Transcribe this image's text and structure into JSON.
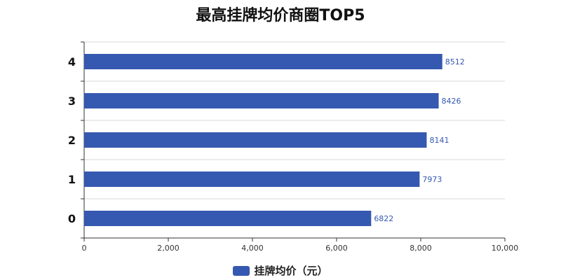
{
  "colors": {
    "bar": "#3558b0",
    "grid": "#d9d9d9",
    "axis": "#333333",
    "label": "#3558b0"
  },
  "chart_data": {
    "type": "bar",
    "orientation": "horizontal",
    "title": "最高挂牌均价商圈TOP5",
    "categories": [
      "0",
      "1",
      "2",
      "3",
      "4"
    ],
    "series": [
      {
        "name": "挂牌均价（元）",
        "values": [
          6822,
          7973,
          8141,
          8426,
          8512
        ]
      }
    ],
    "xlim": [
      0,
      10000
    ],
    "xticks": [
      0,
      2000,
      4000,
      6000,
      8000,
      10000
    ],
    "xtick_labels": [
      "0",
      "2,000",
      "4,000",
      "6,000",
      "8,000",
      "10,000"
    ],
    "grid": true,
    "legend": "bottom-center",
    "data_labels": true
  }
}
